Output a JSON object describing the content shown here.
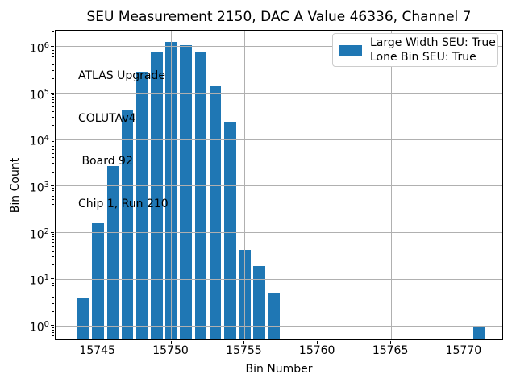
{
  "figure": {
    "title": "SEU Measurement 2150, DAC A Value 46336, Channel 7"
  },
  "axes": {
    "xlabel": "Bin Number",
    "ylabel": "Bin Count"
  },
  "annotation": {
    "lines": [
      "ATLAS Upgrade",
      "COLUTAv4",
      " Board 92",
      "Chip 1, Run 210"
    ]
  },
  "legend": {
    "entries": [
      "Large Width SEU: True",
      "Lone Bin SEU: True"
    ],
    "swatch_color": "#1f77b4",
    "position": "upper right"
  },
  "chart_data": {
    "type": "bar",
    "title": "SEU Measurement 2150, DAC A Value 46336, Channel 7",
    "xlabel": "Bin Number",
    "ylabel": "Bin Count",
    "yscale": "log",
    "categories": [
      15744,
      15745,
      15746,
      15747,
      15748,
      15749,
      15750,
      15751,
      15752,
      15753,
      15754,
      15755,
      15756,
      15757,
      15771
    ],
    "values": [
      4,
      160,
      2700,
      44000,
      285000,
      790000,
      1250000,
      1080000,
      770000,
      143000,
      24000,
      42,
      19,
      5,
      1
    ],
    "bar_width": 0.8,
    "bar_color": "#1f77b4",
    "xlim": [
      15742.1,
      15772.7
    ],
    "ylim": [
      0.47,
      2200000
    ],
    "xticks": [
      15745,
      15750,
      15755,
      15760,
      15765,
      15770
    ],
    "ytick_exponents": [
      0,
      1,
      2,
      3,
      4,
      5,
      6
    ],
    "grid": true,
    "grid_color": "#b0b0b0",
    "legend_entries": [
      "Large Width SEU: True",
      "Lone Bin SEU: True"
    ],
    "annotation_lines": [
      "ATLAS Upgrade",
      "COLUTAv4",
      " Board 92",
      "Chip 1, Run 210"
    ]
  }
}
